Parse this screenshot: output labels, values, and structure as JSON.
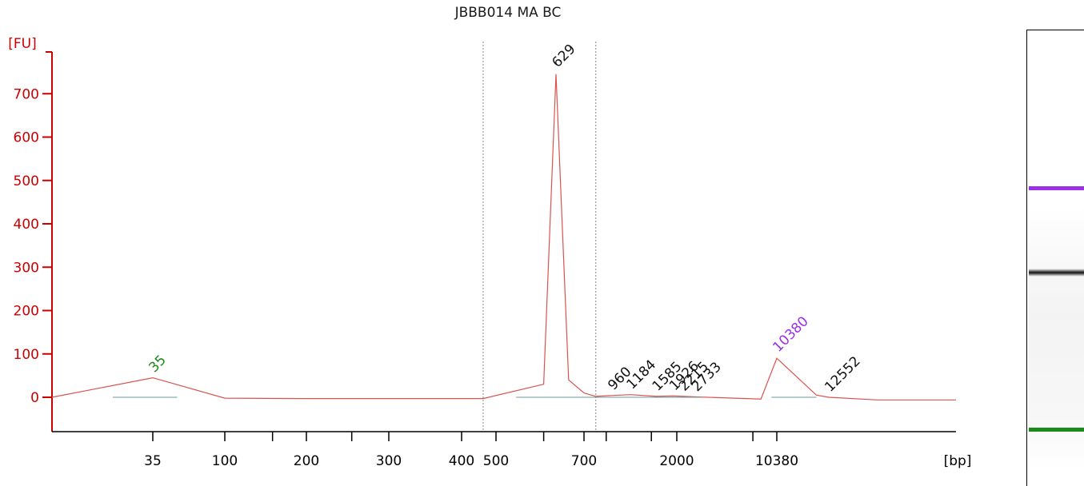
{
  "chart_data": {
    "type": "line",
    "title": "JBBB014 MA BC",
    "ylabel": "[FU]",
    "xlabel": "[bp]",
    "y_ticks": [
      "0",
      "100",
      "200",
      "300",
      "400",
      "500",
      "600",
      "700"
    ],
    "ylim": [
      -85,
      790
    ],
    "x_ticks": [
      "35",
      "100",
      "200",
      "300",
      "400",
      "500",
      "700",
      "2000",
      "10380"
    ],
    "series": [
      {
        "points": [
          [
            15,
            0
          ],
          [
            35,
            45
          ],
          [
            100,
            -2
          ],
          [
            200,
            -3
          ],
          [
            400,
            -3
          ],
          [
            460,
            -3
          ],
          [
            600,
            30
          ],
          [
            629,
            745
          ],
          [
            660,
            40
          ],
          [
            700,
            10
          ],
          [
            800,
            2
          ],
          [
            960,
            4
          ],
          [
            1184,
            6
          ],
          [
            1585,
            2
          ],
          [
            1926,
            3
          ],
          [
            2215,
            2
          ],
          [
            2733,
            1
          ],
          [
            8000,
            -4
          ],
          [
            10380,
            90
          ],
          [
            12000,
            5
          ],
          [
            12552,
            0
          ],
          [
            15000,
            -6
          ],
          [
            20000,
            -6
          ]
        ]
      }
    ],
    "peaks": [
      {
        "label": "35",
        "bp": 35,
        "fu": 45,
        "color": "#1a8a1a"
      },
      {
        "label": "629",
        "bp": 629,
        "fu": 748,
        "color": "#111111"
      },
      {
        "label": "960",
        "bp": 960,
        "fu": 4,
        "color": "#111111"
      },
      {
        "label": "1184",
        "bp": 1184,
        "fu": 6,
        "color": "#111111"
      },
      {
        "label": "1585",
        "bp": 1585,
        "fu": 2,
        "color": "#111111"
      },
      {
        "label": "1926",
        "bp": 1926,
        "fu": 3,
        "color": "#111111"
      },
      {
        "label": "2215",
        "bp": 2215,
        "fu": 2,
        "color": "#111111"
      },
      {
        "label": "2733",
        "bp": 2733,
        "fu": 1,
        "color": "#111111"
      },
      {
        "label": "10380",
        "bp": 10380,
        "fu": 92,
        "color": "#9b30e8"
      },
      {
        "label": "12552",
        "bp": 12552,
        "fu": 0,
        "color": "#111111"
      }
    ],
    "region_bp": [
      460,
      800
    ],
    "grid": false,
    "legend": "none",
    "colors": {
      "trace": "#d9534f",
      "axis": "#cc0000",
      "lower_marker": "#1a8a1a",
      "upper_marker": "#9b30e8"
    }
  },
  "gel": {
    "bands": [
      {
        "name": "upper-marker",
        "color": "#9b30e8"
      },
      {
        "name": "sample-band",
        "color": "#111111"
      },
      {
        "name": "lower-marker",
        "color": "#1a8a1a"
      }
    ]
  }
}
